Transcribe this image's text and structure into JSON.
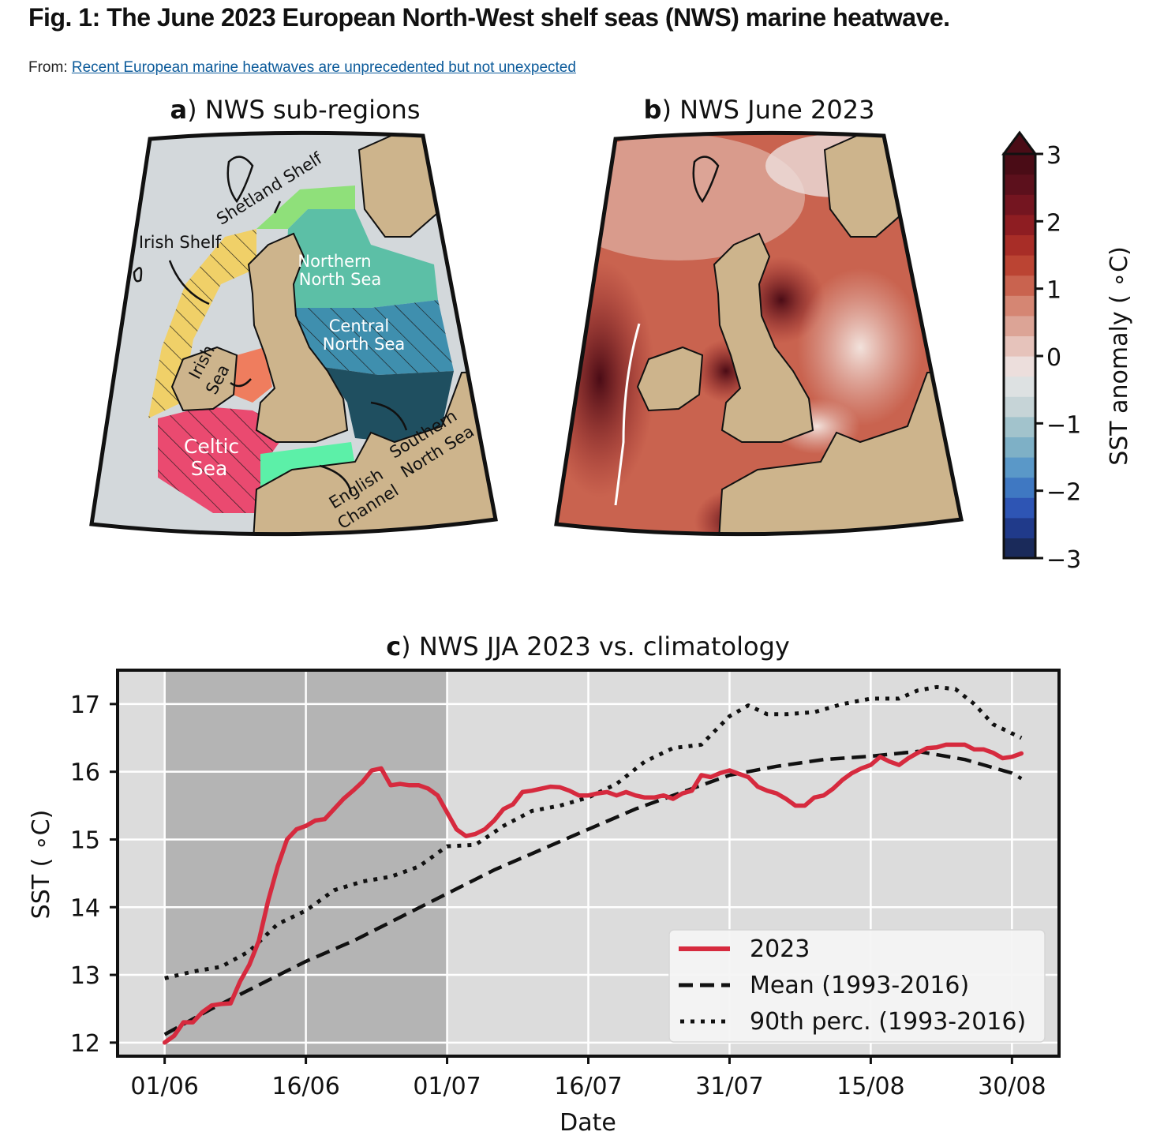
{
  "figure": {
    "title": "Fig. 1: The June 2023 European North-West shelf seas (NWS) marine heatwave.",
    "from_label": "From:",
    "from_link": "Recent European marine heatwaves are unprecedented but not unexpected"
  },
  "panel_a": {
    "letter": "a",
    "title": ") NWS sub-regions",
    "regions": [
      {
        "name": "Shetland Shelf",
        "color": "#8fe07a"
      },
      {
        "name": "Irish Shelf",
        "color": "#f0d068"
      },
      {
        "name": "Northern North Sea",
        "color": "#5cbfa6"
      },
      {
        "name": "Central North Sea",
        "color": "#3f8fae"
      },
      {
        "name": "Irish Sea",
        "color": "#ef7d5e"
      },
      {
        "name": "Celtic Sea",
        "color": "#ea4a70"
      },
      {
        "name": "English Channel",
        "color": "#5cf0a8"
      },
      {
        "name": "Southern North Sea",
        "color": "#1f4f60"
      }
    ],
    "labels": {
      "shetland": "Shetland Shelf",
      "irish_shelf": "Irish Shelf",
      "northern_1": "Northern",
      "northern_2": "North Sea",
      "central_1": "Central",
      "central_2": "North Sea",
      "irish_sea_1": "Irish",
      "irish_sea_2": "Sea",
      "celtic_1": "Celtic",
      "celtic_2": "Sea",
      "english_1": "English",
      "english_2": "Channel",
      "southern_1": "Southern",
      "southern_2": "North Sea"
    },
    "colors": {
      "ocean": "#d3d8db",
      "land": "#cdb48c"
    }
  },
  "panel_b": {
    "letter": "b",
    "title": ") NWS June 2023"
  },
  "colorbar": {
    "label": "SST anomaly ( ∘C)",
    "ticks": [
      "3",
      "2",
      "1",
      "0",
      "−1",
      "−2",
      "−3"
    ],
    "range": [
      -3,
      3
    ],
    "colors": [
      "#1a2a5a",
      "#203a8a",
      "#2e55b4",
      "#3f78c2",
      "#5a98c8",
      "#7eb0c6",
      "#a2c3cc",
      "#c6d4d7",
      "#dde1e2",
      "#ecdedc",
      "#e6c3bb",
      "#dca496",
      "#d58673",
      "#c9634f",
      "#bb4433",
      "#a82d27",
      "#8e1d22",
      "#741520",
      "#5c101c",
      "#4a0c16"
    ]
  },
  "chart_data": {
    "type": "line",
    "title_letter": "c",
    "title": ") NWS JJA 2023 vs. climatology",
    "xlabel": "Date",
    "ylabel": "SST ( ∘C)",
    "xlim": [
      -5,
      95
    ],
    "ylim": [
      11.8,
      17.5
    ],
    "xticks": [
      0,
      15,
      30,
      45,
      60,
      75,
      90
    ],
    "xtick_labels": [
      "01/06",
      "16/06",
      "01/07",
      "16/07",
      "31/07",
      "15/08",
      "30/08"
    ],
    "yticks": [
      12,
      13,
      14,
      15,
      16,
      17
    ],
    "ytick_labels": [
      "12",
      "13",
      "14",
      "15",
      "16",
      "17"
    ],
    "highlight_span": [
      0,
      30
    ],
    "legend_location": "lower right",
    "series": [
      {
        "name": "2023",
        "style": "solid",
        "color": "#d62a3e",
        "x": [
          0,
          1,
          2,
          3,
          4,
          5,
          6,
          7,
          8,
          9,
          10,
          11,
          12,
          13,
          14,
          15,
          16,
          17,
          18,
          19,
          20,
          21,
          22,
          23,
          24,
          25,
          26,
          27,
          28,
          29,
          30,
          31,
          32,
          33,
          34,
          35,
          36,
          37,
          38,
          39,
          40,
          41,
          42,
          43,
          44,
          45,
          46,
          47,
          48,
          49,
          50,
          51,
          52,
          53,
          54,
          55,
          56,
          57,
          58,
          59,
          60,
          61,
          62,
          63,
          64,
          65,
          66,
          67,
          68,
          69,
          70,
          71,
          72,
          73,
          74,
          75,
          76,
          77,
          78,
          79,
          80,
          81,
          82,
          83,
          84,
          85,
          86,
          87,
          88,
          89,
          90,
          91
        ],
        "y": [
          12.0,
          12.1,
          12.3,
          12.3,
          12.45,
          12.55,
          12.57,
          12.58,
          12.9,
          13.15,
          13.5,
          14.1,
          14.6,
          15.0,
          15.15,
          15.2,
          15.28,
          15.3,
          15.45,
          15.6,
          15.72,
          15.85,
          16.02,
          16.05,
          15.8,
          15.82,
          15.8,
          15.8,
          15.75,
          15.65,
          15.4,
          15.15,
          15.05,
          15.08,
          15.15,
          15.28,
          15.45,
          15.52,
          15.7,
          15.72,
          15.75,
          15.78,
          15.77,
          15.72,
          15.65,
          15.65,
          15.68,
          15.7,
          15.65,
          15.7,
          15.65,
          15.62,
          15.62,
          15.65,
          15.6,
          15.68,
          15.72,
          15.95,
          15.92,
          15.98,
          16.02,
          15.97,
          15.92,
          15.78,
          15.72,
          15.68,
          15.6,
          15.5,
          15.5,
          15.62,
          15.65,
          15.75,
          15.88,
          15.98,
          16.05,
          16.1,
          16.22,
          16.15,
          16.1,
          16.2,
          16.28,
          16.35,
          16.36,
          16.4,
          16.4,
          16.4,
          16.33,
          16.33,
          16.28,
          16.2,
          16.22,
          16.27
        ]
      },
      {
        "name": "Mean (1993-2016)",
        "style": "dashed",
        "color": "#111111",
        "x": [
          0,
          5,
          10,
          15,
          20,
          25,
          30,
          35,
          40,
          45,
          50,
          55,
          60,
          65,
          70,
          75,
          80,
          85,
          90,
          91
        ],
        "y": [
          12.12,
          12.5,
          12.85,
          13.2,
          13.5,
          13.85,
          14.2,
          14.55,
          14.85,
          15.15,
          15.45,
          15.7,
          15.95,
          16.08,
          16.18,
          16.23,
          16.3,
          16.18,
          15.98,
          15.9
        ]
      },
      {
        "name": "90th perc. (1993-2016)",
        "style": "dotted",
        "color": "#111111",
        "x": [
          0,
          3,
          6,
          9,
          12,
          15,
          18,
          21,
          24,
          27,
          30,
          33,
          36,
          39,
          42,
          45,
          48,
          51,
          54,
          57,
          60,
          62,
          64,
          66,
          69,
          72,
          75,
          78,
          80,
          82,
          84,
          86,
          88,
          91
        ],
        "y": [
          12.95,
          13.05,
          13.12,
          13.35,
          13.75,
          13.95,
          14.25,
          14.38,
          14.45,
          14.6,
          14.9,
          14.92,
          15.2,
          15.42,
          15.5,
          15.62,
          15.82,
          16.15,
          16.35,
          16.4,
          16.82,
          16.98,
          16.85,
          16.85,
          16.88,
          17.0,
          17.08,
          17.08,
          17.2,
          17.25,
          17.22,
          17.0,
          16.7,
          16.5
        ]
      }
    ]
  }
}
